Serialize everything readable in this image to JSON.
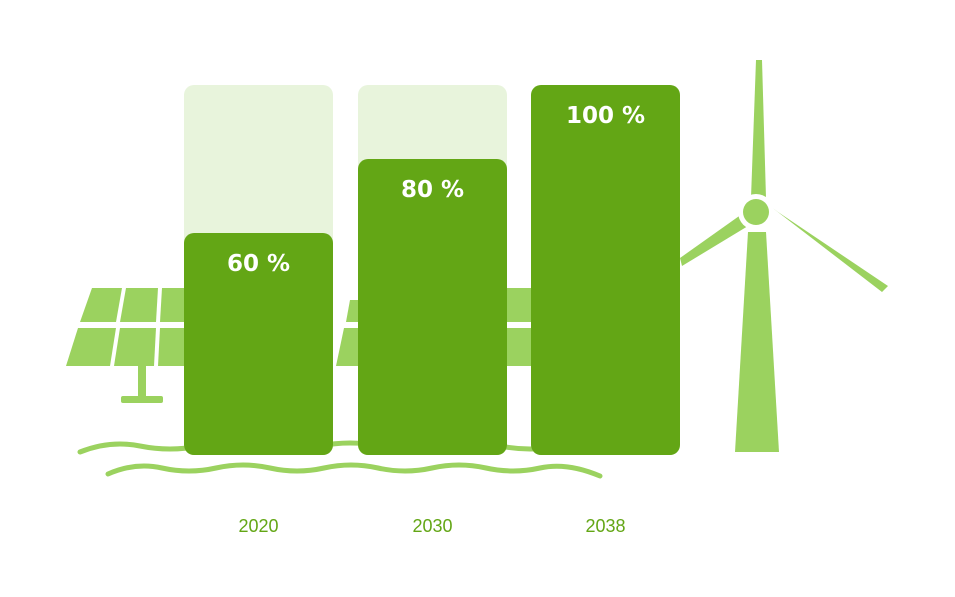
{
  "chart_data": {
    "type": "bar",
    "categories": [
      "2020",
      "2030",
      "2038"
    ],
    "values": [
      60,
      80,
      100
    ],
    "value_labels": [
      "60 %",
      "80 %",
      "100 %"
    ],
    "ylim": [
      0,
      100
    ],
    "grid": false,
    "colors": {
      "bar": "#63a615",
      "bar_track": "#e8f4dc",
      "illustration": "#9bd25f",
      "bar_label": "#ffffff",
      "axis_label": "#63a615"
    }
  },
  "illustration": {
    "left": "solar-panel-icon",
    "middle": "solar-panel-icon",
    "right": "wind-turbine-icon",
    "bottom": "water-wave-icon"
  }
}
